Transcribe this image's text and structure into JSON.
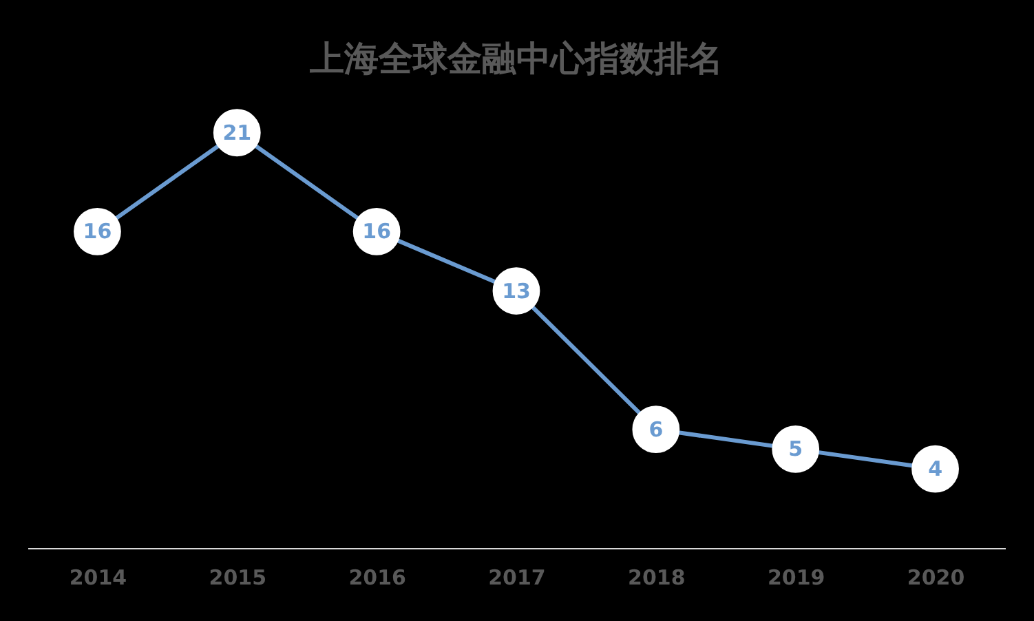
{
  "chart_data": {
    "type": "line",
    "title": "上海全球金融中心指数排名",
    "categories": [
      "2014",
      "2015",
      "2016",
      "2017",
      "2018",
      "2019",
      "2020"
    ],
    "values": [
      16,
      21,
      16,
      13,
      6,
      5,
      4
    ],
    "color": "#6a9bd1",
    "data_labels": true,
    "marker": "circle",
    "line_style": "solid",
    "tick_labels": "x"
  }
}
